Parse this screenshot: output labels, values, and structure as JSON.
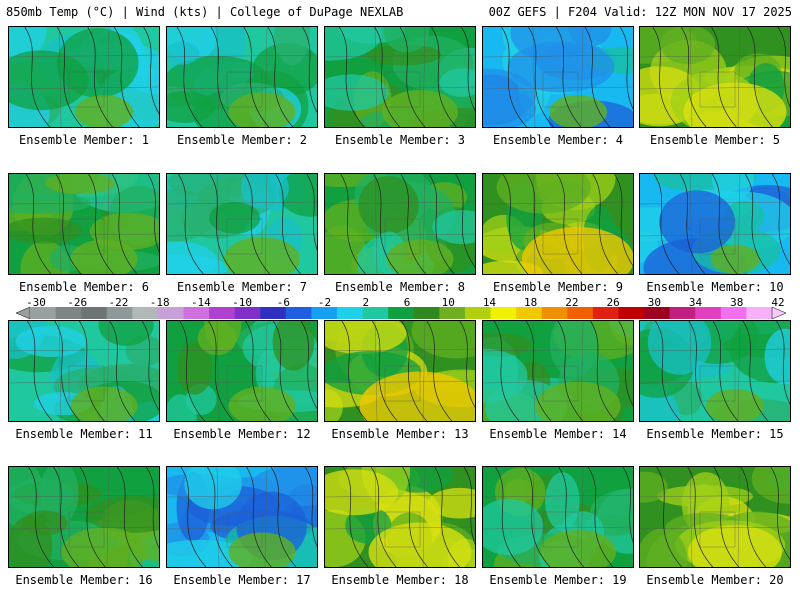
{
  "header": {
    "left": "850mb Temp (°C) | Wind (kts) | College of DuPage NEXLAB",
    "right": "00Z GEFS | F204 Valid: 12Z MON NOV 17 2025"
  },
  "caption_prefix": "Ensemble Member: ",
  "members": [
    {
      "label": "Ensemble Member: 1",
      "scheme": "cool",
      "warm_core": 0.2
    },
    {
      "label": "Ensemble Member: 2",
      "scheme": "cool",
      "warm_core": 0.3
    },
    {
      "label": "Ensemble Member: 3",
      "scheme": "mild",
      "warm_core": 0.4
    },
    {
      "label": "Ensemble Member: 4",
      "scheme": "cold",
      "warm_core": 0.2
    },
    {
      "label": "Ensemble Member: 5",
      "scheme": "warm",
      "warm_core": 0.7
    },
    {
      "label": "Ensemble Member: 6",
      "scheme": "mild",
      "warm_core": 0.3
    },
    {
      "label": "Ensemble Member: 7",
      "scheme": "cool",
      "warm_core": 0.4
    },
    {
      "label": "Ensemble Member: 8",
      "scheme": "mild",
      "warm_core": 0.3
    },
    {
      "label": "Ensemble Member: 9",
      "scheme": "warm",
      "warm_core": 0.8
    },
    {
      "label": "Ensemble Member: 10",
      "scheme": "cold",
      "warm_core": 0.1
    },
    {
      "label": "Ensemble Member: 11",
      "scheme": "cool",
      "warm_core": 0.3
    },
    {
      "label": "Ensemble Member: 12",
      "scheme": "mild",
      "warm_core": 0.3
    },
    {
      "label": "Ensemble Member: 13",
      "scheme": "warm",
      "warm_core": 0.9
    },
    {
      "label": "Ensemble Member: 14",
      "scheme": "mild",
      "warm_core": 0.5
    },
    {
      "label": "Ensemble Member: 15",
      "scheme": "cool",
      "warm_core": 0.2
    },
    {
      "label": "Ensemble Member: 16",
      "scheme": "mild",
      "warm_core": 0.5
    },
    {
      "label": "Ensemble Member: 17",
      "scheme": "cold",
      "warm_core": 0.3
    },
    {
      "label": "Ensemble Member: 18",
      "scheme": "warm",
      "warm_core": 0.7
    },
    {
      "label": "Ensemble Member: 19",
      "scheme": "mild",
      "warm_core": 0.4
    },
    {
      "label": "Ensemble Member: 20",
      "scheme": "warm",
      "warm_core": 0.6
    }
  ],
  "colorbar": {
    "ticks": [
      "-30",
      "-26",
      "-22",
      "-18",
      "-14",
      "-10",
      "-6",
      "-2",
      "2",
      "6",
      "10",
      "14",
      "18",
      "22",
      "26",
      "30",
      "34",
      "38",
      "42"
    ],
    "colors": [
      "#9aa0a0",
      "#7d8585",
      "#6e7373",
      "#8f9898",
      "#b0b8b8",
      "#c8a0d8",
      "#d070e0",
      "#b040d0",
      "#8030c8",
      "#3030c0",
      "#2060e0",
      "#18a0f0",
      "#20d0e8",
      "#20c8a0",
      "#10a040",
      "#308820",
      "#70b020",
      "#b0d010",
      "#f0f000",
      "#f0c800",
      "#f09000",
      "#f06000",
      "#e02010",
      "#c00000",
      "#a00020",
      "#c02080",
      "#e040c0",
      "#f070f0",
      "#f8b0f8"
    ],
    "end_color": "#f8c8f8"
  }
}
